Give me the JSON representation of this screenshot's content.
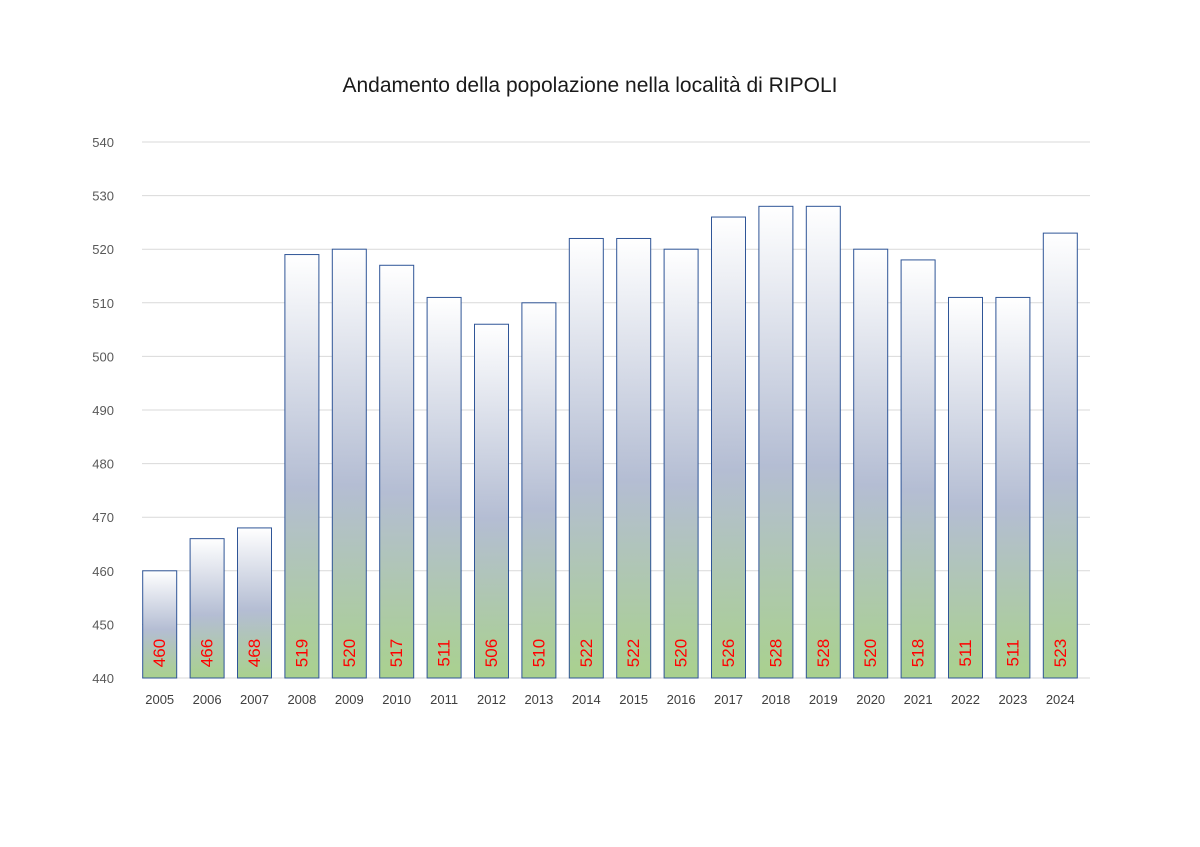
{
  "chart_data": {
    "type": "bar",
    "title": "Andamento della popolazione nella località di RIPOLI",
    "xlabel": "",
    "ylabel": "",
    "categories": [
      "2005",
      "2006",
      "2007",
      "2008",
      "2009",
      "2010",
      "2011",
      "2012",
      "2013",
      "2014",
      "2015",
      "2016",
      "2017",
      "2018",
      "2019",
      "2020",
      "2021",
      "2022",
      "2023",
      "2024"
    ],
    "values": [
      460,
      466,
      468,
      519,
      520,
      517,
      511,
      506,
      510,
      522,
      522,
      520,
      526,
      528,
      528,
      520,
      518,
      511,
      511,
      523
    ],
    "ylim": [
      440,
      540
    ],
    "yticks": [
      440,
      450,
      460,
      470,
      480,
      490,
      500,
      510,
      520,
      530,
      540
    ],
    "grid": true,
    "data_labels": true,
    "legend": "none",
    "colors": {
      "bar_top": "#ffffff",
      "bar_middle": "#b4bdd3",
      "bar_bottom": "#a9d18e",
      "bar_border": "#2f5597",
      "data_label": "#ff0000",
      "gridline": "#d9d9d9"
    }
  }
}
